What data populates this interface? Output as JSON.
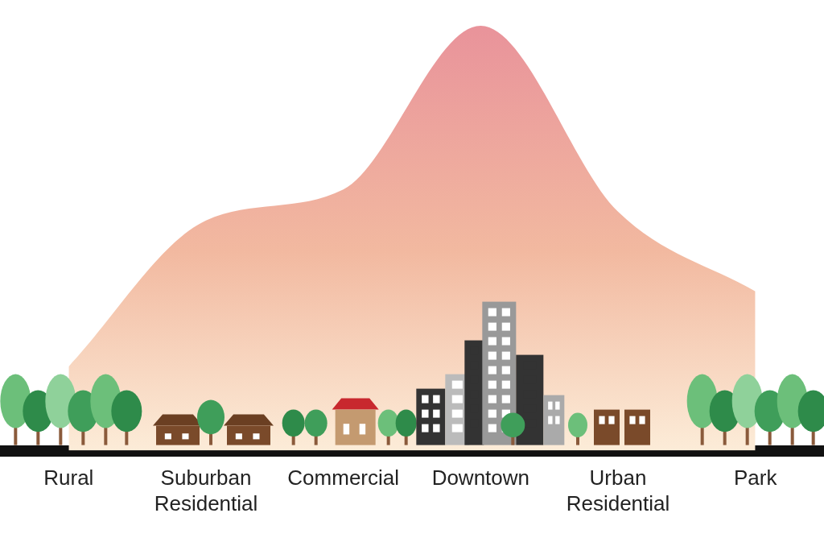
{
  "chart_data": {
    "type": "area",
    "categories": [
      "Rural",
      "Suburban Residential",
      "Commercial",
      "Downtown",
      "Urban Residential",
      "Park"
    ],
    "values": [
      19,
      52,
      59,
      96,
      54,
      36
    ],
    "color": "#e8909a",
    "ylim": [
      0,
      100
    ],
    "tick_labels": "x",
    "grid": false
  }
}
